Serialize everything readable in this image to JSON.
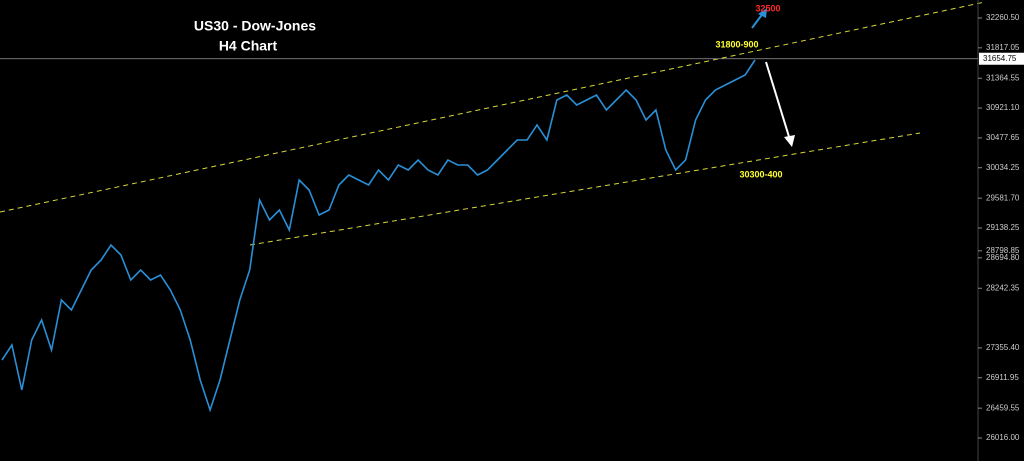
{
  "chart_data": {
    "type": "line",
    "title": "US30 - Dow-Jones",
    "subtitle": "H4 Chart",
    "series": [
      {
        "name": "US30",
        "color": "#2a8fd6",
        "values": [
          27176,
          27399,
          26729,
          27473,
          27770,
          27324,
          28068,
          27919,
          28216,
          28514,
          28662,
          28885,
          28737,
          28365,
          28514,
          28365,
          28439,
          28216,
          27919,
          27473,
          26878,
          26432,
          26878,
          27473,
          28068,
          28514,
          29554,
          29257,
          29406,
          29108,
          29852,
          29703,
          29331,
          29406,
          29777,
          29926,
          29852,
          29777,
          30000,
          29852,
          30075,
          30000,
          30149,
          30000,
          29926,
          30149,
          30075,
          30075,
          29926,
          30000,
          30149,
          30298,
          30446,
          30446,
          30670,
          30446,
          31041,
          31116,
          30967,
          31041,
          31116,
          30893,
          31041,
          31190,
          31041,
          30744,
          30893,
          30298,
          30000,
          30149,
          30744,
          31041,
          31190,
          31264,
          31339,
          31413,
          31636
        ]
      }
    ],
    "ylim": [
      25674,
      32528
    ],
    "yticks": [
      {
        "value": 32260.5,
        "label": "32260.50"
      },
      31817.05,
      {
        "value": 31364.55,
        "label": "31364.55"
      },
      {
        "value": 30921.1,
        "label": "30921.10"
      },
      30477.65,
      30034.25,
      {
        "value": 29581.7,
        "label": "29581.70"
      },
      29138.25,
      {
        "value": 28694.8,
        "label": "28694.80"
      },
      28242.35,
      28798.85,
      {
        "value": 27355.4,
        "label": "27355.40"
      },
      26911.95,
      26459.55,
      {
        "value": 26016,
        "label": "26016.00"
      }
    ],
    "current_price": 31654.75,
    "annotations": {
      "target_up": "32500",
      "resistance": "31800-900",
      "support": "30300-400"
    }
  }
}
